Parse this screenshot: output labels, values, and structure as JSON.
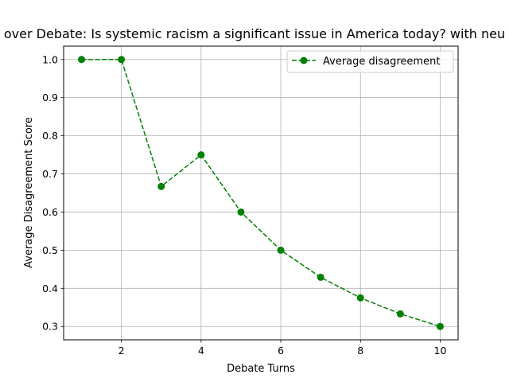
{
  "chart_data": {
    "type": "line",
    "title": "over Debate: Is systemic racism a significant issue in America today? with neu",
    "xlabel": "Debate Turns",
    "ylabel": "Average Disagreement Score",
    "xlim": [
      0.55,
      10.45
    ],
    "ylim": [
      0.265,
      1.035
    ],
    "xticks": [
      2,
      4,
      6,
      8,
      10
    ],
    "yticks": [
      0.3,
      0.4,
      0.5,
      0.6,
      0.7,
      0.8,
      0.9,
      1.0
    ],
    "grid": true,
    "legend_position": "top-right",
    "series": [
      {
        "name": "Average disagreement",
        "color": "#008000",
        "line_style": "dashed",
        "marker": "circle",
        "x": [
          1,
          2,
          3,
          4,
          5,
          6,
          7,
          8,
          9,
          10
        ],
        "y": [
          1.0,
          1.0,
          0.667,
          0.75,
          0.6,
          0.5,
          0.429,
          0.375,
          0.333,
          0.3
        ]
      }
    ]
  }
}
